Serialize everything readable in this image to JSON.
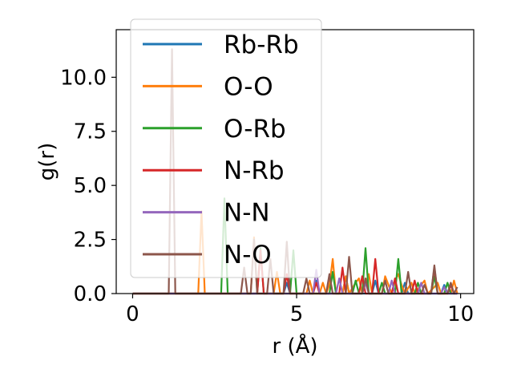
{
  "chart_data": {
    "type": "line",
    "xlabel": "r (Å)",
    "ylabel": "g(r)",
    "xlim": [
      -0.5,
      10.4
    ],
    "ylim": [
      0,
      12.2
    ],
    "xticks": [
      0,
      5,
      10
    ],
    "xtick_labels": [
      "0",
      "5",
      "10"
    ],
    "yticks": [
      0.0,
      2.5,
      5.0,
      7.5,
      10.0
    ],
    "ytick_labels": [
      "0.0",
      "2.5",
      "5.0",
      "7.5",
      "10.0"
    ],
    "grid": false,
    "legend_position": "top-left",
    "series": [
      {
        "name": "Rb-Rb",
        "color": "#1f77b4",
        "points": [
          [
            0,
            0
          ],
          [
            4.6,
            0
          ],
          [
            4.7,
            0.5
          ],
          [
            4.8,
            0
          ],
          [
            5.5,
            0
          ],
          [
            5.6,
            0.6
          ],
          [
            5.7,
            0
          ],
          [
            6.4,
            0
          ],
          [
            6.5,
            0.8
          ],
          [
            6.6,
            0
          ],
          [
            7.3,
            0
          ],
          [
            7.4,
            0.6
          ],
          [
            7.5,
            0
          ],
          [
            8.2,
            0
          ],
          [
            8.3,
            0.5
          ],
          [
            8.4,
            0
          ],
          [
            9.4,
            0
          ],
          [
            9.5,
            0.4
          ],
          [
            9.6,
            0
          ],
          [
            9.9,
            0
          ]
        ]
      },
      {
        "name": "O-O",
        "color": "#ff7f0e",
        "points": [
          [
            0,
            0
          ],
          [
            2.0,
            0
          ],
          [
            2.1,
            3.8
          ],
          [
            2.2,
            0
          ],
          [
            3.6,
            0
          ],
          [
            3.7,
            2.6
          ],
          [
            3.8,
            0
          ],
          [
            4.3,
            0
          ],
          [
            4.4,
            1.0
          ],
          [
            4.5,
            0
          ],
          [
            5.3,
            0
          ],
          [
            5.4,
            0.6
          ],
          [
            5.5,
            0
          ],
          [
            5.7,
            0
          ],
          [
            5.8,
            0.5
          ],
          [
            5.9,
            0
          ],
          [
            6.0,
            0.4
          ],
          [
            6.1,
            1.6
          ],
          [
            6.2,
            0
          ],
          [
            6.4,
            0
          ],
          [
            6.5,
            0.8
          ],
          [
            6.6,
            0
          ],
          [
            6.8,
            0.5
          ],
          [
            6.9,
            0.7
          ],
          [
            7.0,
            0
          ],
          [
            7.2,
            0.9
          ],
          [
            7.3,
            0
          ],
          [
            7.6,
            0
          ],
          [
            7.7,
            0.8
          ],
          [
            7.8,
            0.4
          ],
          [
            7.9,
            0
          ],
          [
            8.0,
            0.6
          ],
          [
            8.1,
            0.9
          ],
          [
            8.2,
            0.4
          ],
          [
            8.3,
            0
          ],
          [
            8.5,
            0.5
          ],
          [
            8.6,
            0
          ],
          [
            8.8,
            0.4
          ],
          [
            8.9,
            0.6
          ],
          [
            9.0,
            0
          ],
          [
            9.2,
            0.3
          ],
          [
            9.3,
            0.5
          ],
          [
            9.4,
            0
          ],
          [
            9.7,
            0
          ],
          [
            9.8,
            0.6
          ],
          [
            9.9,
            0
          ]
        ]
      },
      {
        "name": "O-Rb",
        "color": "#2ca02c",
        "points": [
          [
            0,
            0
          ],
          [
            2.7,
            0
          ],
          [
            2.8,
            4.4
          ],
          [
            2.9,
            0
          ],
          [
            3.8,
            0
          ],
          [
            3.9,
            2.1
          ],
          [
            4.0,
            0
          ],
          [
            4.8,
            0
          ],
          [
            4.9,
            2.0
          ],
          [
            5.0,
            0
          ],
          [
            6.0,
            0
          ],
          [
            6.1,
            1.0
          ],
          [
            6.2,
            0
          ],
          [
            6.7,
            0
          ],
          [
            6.8,
            0.6
          ],
          [
            6.9,
            0
          ],
          [
            7.0,
            0
          ],
          [
            7.1,
            2.1
          ],
          [
            7.2,
            0
          ],
          [
            7.5,
            0
          ],
          [
            7.6,
            0.5
          ],
          [
            7.7,
            0
          ],
          [
            8.0,
            0
          ],
          [
            8.1,
            1.6
          ],
          [
            8.2,
            0
          ],
          [
            8.6,
            0
          ],
          [
            8.7,
            0.5
          ],
          [
            8.8,
            0
          ],
          [
            9.1,
            0
          ],
          [
            9.2,
            0.8
          ],
          [
            9.3,
            0
          ],
          [
            9.5,
            0
          ],
          [
            9.6,
            0.5
          ],
          [
            9.7,
            0
          ],
          [
            9.9,
            0
          ]
        ]
      },
      {
        "name": "N-Rb",
        "color": "#d62728",
        "points": [
          [
            0,
            0
          ],
          [
            3.8,
            0
          ],
          [
            3.9,
            2.0
          ],
          [
            4.0,
            0
          ],
          [
            4.6,
            0
          ],
          [
            4.7,
            0.9
          ],
          [
            4.8,
            0
          ],
          [
            5.5,
            0
          ],
          [
            5.6,
            0.5
          ],
          [
            5.7,
            0
          ],
          [
            6.3,
            0
          ],
          [
            6.4,
            1.2
          ],
          [
            6.5,
            0
          ],
          [
            6.9,
            0
          ],
          [
            7.0,
            0.8
          ],
          [
            7.1,
            0
          ],
          [
            7.3,
            0
          ],
          [
            7.4,
            1.6
          ],
          [
            7.5,
            0
          ],
          [
            7.9,
            0
          ],
          [
            8.0,
            0.7
          ],
          [
            8.1,
            0
          ],
          [
            8.5,
            0
          ],
          [
            8.6,
            0.6
          ],
          [
            8.7,
            0
          ],
          [
            9.1,
            0
          ],
          [
            9.2,
            1.2
          ],
          [
            9.3,
            0
          ],
          [
            9.6,
            0
          ],
          [
            9.7,
            0.4
          ],
          [
            9.8,
            0
          ],
          [
            9.9,
            0
          ]
        ]
      },
      {
        "name": "N-N",
        "color": "#9467bd",
        "points": [
          [
            0,
            0
          ],
          [
            5.5,
            0
          ],
          [
            5.6,
            1.1
          ],
          [
            5.7,
            0
          ],
          [
            6.2,
            0
          ],
          [
            6.3,
            0.7
          ],
          [
            6.4,
            0
          ],
          [
            7.0,
            0
          ],
          [
            7.1,
            0.5
          ],
          [
            7.2,
            0
          ],
          [
            7.8,
            0
          ],
          [
            7.9,
            0.6
          ],
          [
            8.0,
            0
          ],
          [
            8.7,
            0
          ],
          [
            8.8,
            0.5
          ],
          [
            8.9,
            0
          ],
          [
            9.4,
            0
          ],
          [
            9.5,
            0.3
          ],
          [
            9.6,
            0
          ],
          [
            9.9,
            0
          ]
        ]
      },
      {
        "name": "N-O",
        "color": "#8c564b",
        "points": [
          [
            0,
            0
          ],
          [
            1.1,
            0
          ],
          [
            1.2,
            11.3
          ],
          [
            1.3,
            0
          ],
          [
            3.3,
            0
          ],
          [
            3.4,
            1.2
          ],
          [
            3.5,
            0
          ],
          [
            3.6,
            0
          ],
          [
            3.7,
            2.5
          ],
          [
            3.8,
            0
          ],
          [
            4.1,
            0
          ],
          [
            4.2,
            1.6
          ],
          [
            4.3,
            0
          ],
          [
            4.6,
            0
          ],
          [
            4.7,
            2.4
          ],
          [
            4.8,
            0
          ],
          [
            5.2,
            0
          ],
          [
            5.3,
            0.7
          ],
          [
            5.4,
            0
          ],
          [
            5.9,
            0
          ],
          [
            6.0,
            0.9
          ],
          [
            6.1,
            0
          ],
          [
            6.5,
            0
          ],
          [
            6.6,
            1.7
          ],
          [
            6.7,
            0
          ],
          [
            7.0,
            0
          ],
          [
            7.1,
            0.7
          ],
          [
            7.2,
            0
          ],
          [
            7.6,
            0
          ],
          [
            7.7,
            0.6
          ],
          [
            7.8,
            0
          ],
          [
            8.3,
            0
          ],
          [
            8.4,
            1.0
          ],
          [
            8.5,
            0
          ],
          [
            8.8,
            0
          ],
          [
            8.9,
            0.4
          ],
          [
            9.0,
            0
          ],
          [
            9.1,
            0
          ],
          [
            9.2,
            1.3
          ],
          [
            9.3,
            0
          ],
          [
            9.6,
            0
          ],
          [
            9.7,
            0.5
          ],
          [
            9.8,
            0
          ],
          [
            9.9,
            0.3
          ]
        ]
      }
    ]
  }
}
